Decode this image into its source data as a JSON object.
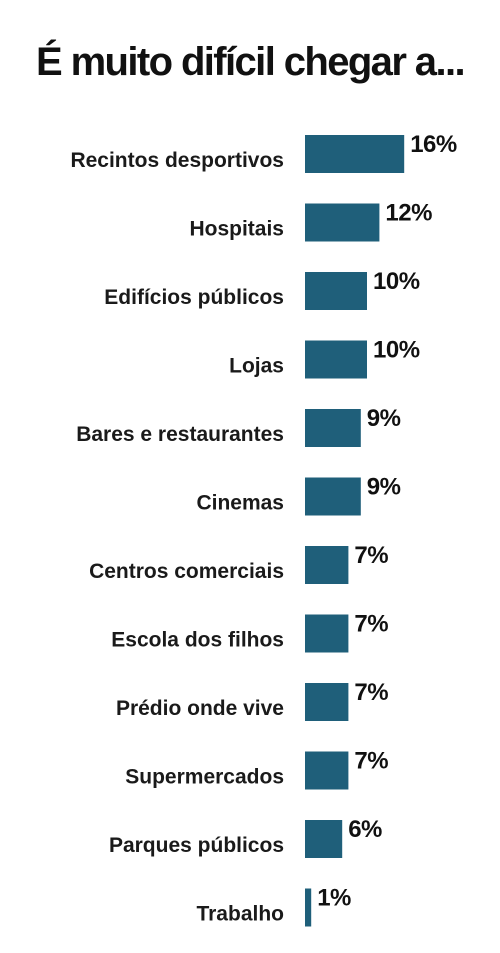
{
  "chart_data": {
    "type": "bar",
    "orientation": "horizontal",
    "title": "É muito difícil chegar a...",
    "categories": [
      "Recintos desportivos",
      "Hospitais",
      "Edifícios públicos",
      "Lojas",
      "Bares e restaurantes",
      "Cinemas",
      "Centros comerciais",
      "Escola dos filhos",
      "Prédio onde vive",
      "Supermercados",
      "Parques públicos",
      "Trabalho"
    ],
    "values": [
      16,
      12,
      10,
      10,
      9,
      9,
      7,
      7,
      7,
      7,
      6,
      1
    ],
    "value_labels": [
      "16%",
      "12%",
      "10%",
      "10%",
      "9%",
      "9%",
      "7%",
      "7%",
      "7%",
      "7%",
      "6%",
      "1%"
    ],
    "unit": "%",
    "bar_color": "#1f5f7a",
    "grid": false,
    "legend": "none"
  }
}
